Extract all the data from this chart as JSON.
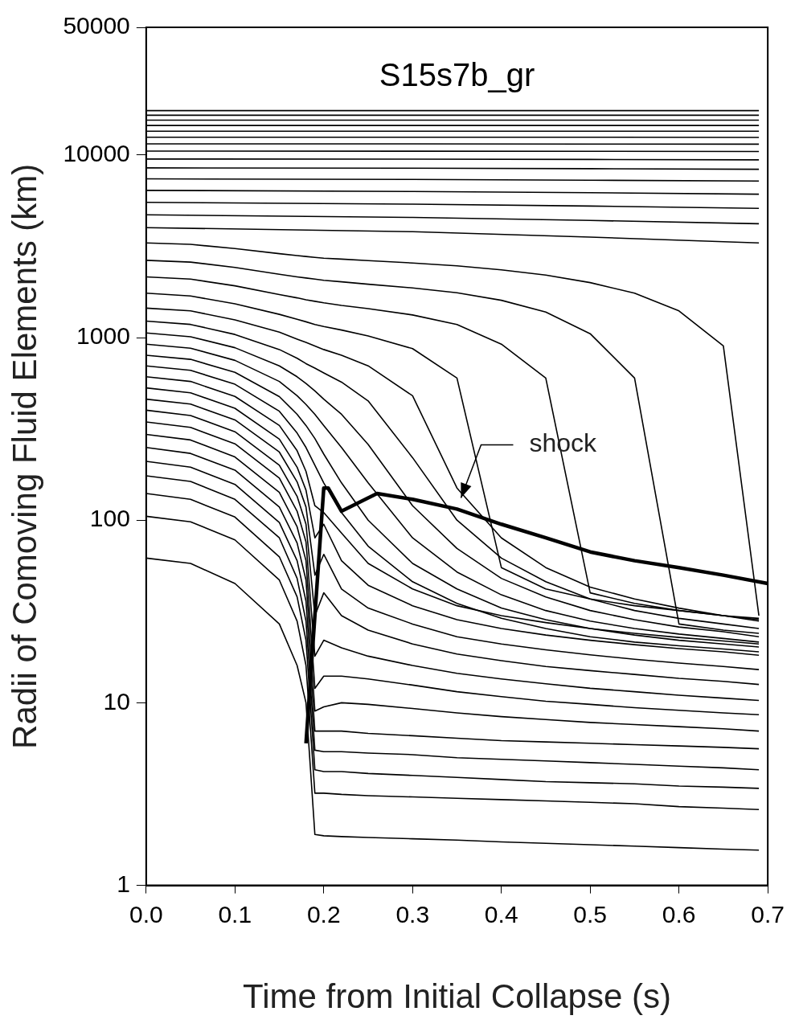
{
  "chart_data": {
    "type": "line",
    "title": "S15s7b_gr",
    "xlabel": "Time from Initial Collapse (s)",
    "ylabel": "Radii of Comoving Fluid Elements (km)",
    "x": [
      0,
      0.05,
      0.1,
      0.15,
      0.17,
      0.18,
      0.19,
      0.2,
      0.22,
      0.25,
      0.3,
      0.35,
      0.4,
      0.45,
      0.5,
      0.55,
      0.6,
      0.65,
      0.69
    ],
    "color": "#000000",
    "marker": "none",
    "line_style": "solid",
    "log": "y",
    "grid": false,
    "legend": false,
    "xlim": [
      0,
      0.7
    ],
    "xticks": [
      {
        "value": 0,
        "label": "0.0"
      },
      0.1,
      0.2,
      0.3,
      0.4,
      0.5,
      0.6,
      0.7
    ],
    "ylim": [
      1,
      50000
    ],
    "yticks": [
      1,
      10,
      100,
      1000,
      10000,
      50000
    ],
    "series": [
      {
        "values": [
          62,
          58,
          45,
          27,
          16,
          10,
          1.9,
          1.87,
          1.85,
          1.83,
          1.8,
          1.77,
          1.73,
          1.7,
          1.67,
          1.64,
          1.61,
          1.58,
          1.56
        ]
      },
      {
        "values": [
          105,
          98,
          78,
          47,
          28,
          16,
          3.2,
          3.2,
          3.15,
          3.1,
          3.05,
          3,
          2.95,
          2.9,
          2.85,
          2.8,
          2.7,
          2.65,
          2.6
        ]
      },
      {
        "values": [
          140,
          130,
          104,
          63,
          38,
          22,
          4.3,
          4.2,
          4.2,
          4.1,
          4,
          3.9,
          3.8,
          3.7,
          3.65,
          3.6,
          3.5,
          3.45,
          3.4
        ]
      },
      {
        "values": [
          175,
          163,
          130,
          80,
          48,
          28,
          5.5,
          5.4,
          5.4,
          5.3,
          5.2,
          5,
          4.9,
          4.8,
          4.7,
          4.6,
          4.5,
          4.4,
          4.3
        ]
      },
      {
        "values": [
          210,
          195,
          157,
          97,
          60,
          36,
          7,
          7,
          7,
          6.8,
          6.6,
          6.4,
          6.2,
          6.1,
          6,
          5.9,
          5.8,
          5.7,
          5.6
        ]
      },
      {
        "values": [
          250,
          232,
          188,
          118,
          75,
          47,
          9,
          9.5,
          10,
          9.8,
          9.3,
          8.8,
          8.4,
          8.1,
          7.8,
          7.6,
          7.4,
          7.2,
          7
        ]
      },
      {
        "values": [
          295,
          275,
          222,
          142,
          92,
          60,
          12,
          14,
          14,
          13.5,
          12.5,
          11.5,
          10.8,
          10.2,
          9.8,
          9.4,
          9.1,
          8.8,
          8.6
        ]
      },
      {
        "values": [
          345,
          322,
          262,
          170,
          112,
          76,
          18,
          22,
          20,
          18,
          16,
          14.5,
          13.5,
          12.7,
          12,
          11.5,
          11,
          10.6,
          10.3
        ]
      },
      {
        "values": [
          400,
          374,
          305,
          200,
          135,
          95,
          30,
          40,
          30,
          25,
          21,
          18.5,
          17,
          15.8,
          15,
          14.3,
          13.6,
          13.1,
          12.6
        ]
      },
      {
        "values": [
          460,
          432,
          354,
          236,
          162,
          118,
          50,
          65,
          42,
          33,
          27,
          23,
          21,
          19.5,
          18.3,
          17.3,
          16.5,
          15.8,
          15.2
        ]
      },
      {
        "values": [
          530,
          498,
          410,
          278,
          195,
          146,
          80,
          95,
          60,
          44,
          34,
          28.5,
          25.5,
          23.5,
          22,
          20.8,
          19.8,
          19,
          18.2
        ]
      },
      {
        "values": [
          610,
          575,
          476,
          330,
          240,
          185,
          120,
          110,
          85,
          58,
          42,
          34,
          30,
          27.5,
          25.5,
          24,
          22.8,
          21.8,
          21
        ]
      },
      {
        "values": [
          700,
          662,
          555,
          395,
          300,
          250,
          200,
          160,
          110,
          72,
          46,
          35,
          29,
          25.5,
          23,
          21.5,
          20.5,
          19.7,
          19
        ]
      },
      {
        "values": [
          800,
          760,
          645,
          475,
          380,
          330,
          280,
          230,
          160,
          100,
          58,
          42,
          33,
          28.5,
          25.5,
          23.5,
          22,
          21,
          20.2
        ]
      },
      {
        "values": [
          920,
          875,
          750,
          575,
          480,
          430,
          380,
          330,
          250,
          160,
          80,
          52,
          39,
          32,
          28,
          25.5,
          23.8,
          22.5,
          21.5
        ]
      },
      {
        "values": [
          1060,
          1010,
          880,
          700,
          610,
          560,
          510,
          460,
          380,
          260,
          120,
          70,
          48,
          38,
          32,
          28.5,
          26,
          24.5,
          23
        ]
      },
      {
        "values": [
          1230,
          1180,
          1040,
          860,
          770,
          720,
          680,
          640,
          570,
          450,
          220,
          100,
          62,
          46,
          37,
          32,
          29,
          27,
          25.5
        ]
      },
      {
        "values": [
          1450,
          1400,
          1250,
          1070,
          980,
          940,
          900,
          860,
          800,
          700,
          480,
          150,
          80,
          55,
          43,
          37,
          33,
          30,
          28
        ]
      },
      {
        "values": [
          1750,
          1690,
          1530,
          1340,
          1260,
          1220,
          1180,
          1150,
          1100,
          1020,
          870,
          600,
          55,
          42,
          37,
          34,
          32,
          30,
          29
        ]
      },
      {
        "values": [
          2150,
          2090,
          1920,
          1720,
          1650,
          1610,
          1580,
          1550,
          1500,
          1440,
          1330,
          1180,
          920,
          600,
          40,
          35,
          32,
          30,
          28.5
        ]
      },
      {
        "values": [
          2650,
          2590,
          2420,
          2220,
          2150,
          2120,
          2090,
          2060,
          2020,
          1960,
          1870,
          1760,
          1600,
          1380,
          1050,
          600,
          27,
          25,
          24
        ]
      },
      {
        "values": [
          3300,
          3240,
          3070,
          2880,
          2810,
          2780,
          2750,
          2720,
          2690,
          2640,
          2560,
          2470,
          2350,
          2200,
          2000,
          1750,
          1400,
          900,
          30
        ]
      },
      {
        "x": [
          0,
          0.3,
          0.5,
          0.69
        ],
        "values": [
          4000,
          3800,
          3550,
          3300
        ]
      },
      {
        "x": [
          0,
          0.3,
          0.5,
          0.69
        ],
        "values": [
          4700,
          4550,
          4380,
          4200
        ]
      },
      {
        "x": [
          0,
          0.3,
          0.5,
          0.69
        ],
        "values": [
          5500,
          5380,
          5250,
          5100
        ]
      },
      {
        "x": [
          0,
          0.3,
          0.5,
          0.69
        ],
        "values": [
          6400,
          6310,
          6210,
          6100
        ]
      },
      {
        "x": [
          0,
          0.3,
          0.5,
          0.69
        ],
        "values": [
          7400,
          7340,
          7270,
          7200
        ]
      },
      {
        "x": [
          0,
          0.3,
          0.5,
          0.69
        ],
        "values": [
          8500,
          8460,
          8410,
          8350
        ]
      },
      {
        "x": [
          0,
          0.3,
          0.5,
          0.69
        ],
        "values": [
          9500,
          9480,
          9450,
          9400
        ]
      },
      {
        "x": [
          0,
          0.3,
          0.5,
          0.69
        ],
        "values": [
          10500,
          10490,
          10470,
          10440
        ]
      },
      {
        "x": [
          0,
          0.3,
          0.5,
          0.69
        ],
        "values": [
          11500,
          11500,
          11480,
          11460
        ]
      },
      {
        "x": [
          0,
          0.3,
          0.5,
          0.69
        ],
        "values": [
          12500,
          12500,
          12500,
          12480
        ]
      },
      {
        "x": [
          0,
          0.3,
          0.5,
          0.69
        ],
        "values": [
          13500,
          13500,
          13500,
          13500
        ]
      },
      {
        "x": [
          0,
          0.3,
          0.5,
          0.69
        ],
        "values": [
          14500,
          14500,
          14500,
          14500
        ]
      },
      {
        "x": [
          0,
          0.3,
          0.5,
          0.69
        ],
        "values": [
          15500,
          15500,
          15500,
          15500
        ]
      },
      {
        "x": [
          0,
          0.3,
          0.5,
          0.69
        ],
        "values": [
          16500,
          16500,
          16500,
          16500
        ]
      },
      {
        "x": [
          0,
          0.3,
          0.5,
          0.69
        ],
        "values": [
          17500,
          17500,
          17500,
          17500
        ]
      },
      {
        "name": "shock",
        "x": [
          0.18,
          0.19,
          0.2,
          0.205,
          0.22,
          0.26,
          0.3,
          0.35,
          0.4,
          0.45,
          0.5,
          0.55,
          0.6,
          0.65,
          0.7
        ],
        "values": [
          6,
          30,
          150,
          150,
          112,
          140,
          130,
          115,
          95,
          80,
          67,
          60,
          55,
          50,
          45
        ]
      }
    ]
  }
}
